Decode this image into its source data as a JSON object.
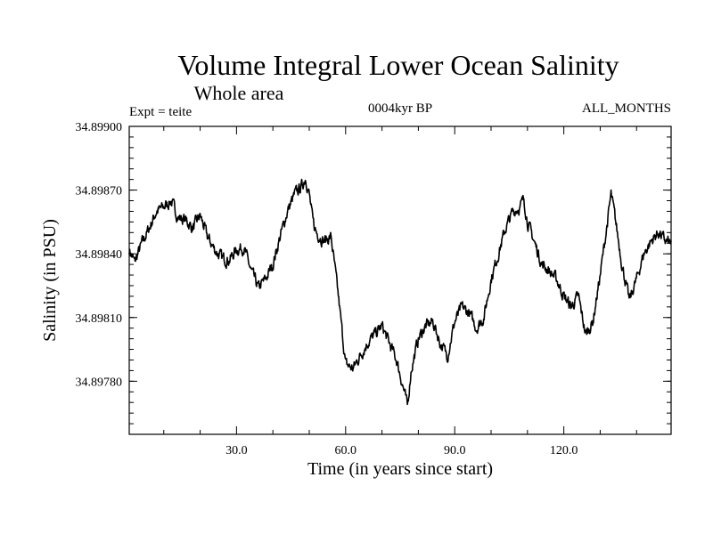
{
  "chart_data": {
    "type": "line",
    "title": "Volume Integral Lower Ocean Salinity",
    "subtitle": "Whole area",
    "left_note": "Expt = teite",
    "center_note": "0004kyr BP",
    "right_note": "ALL_MONTHS",
    "xlabel": "Time (in years since start)",
    "ylabel": "Salinity (in PSU)",
    "xlim": [
      0.5,
      149.5
    ],
    "ylim": [
      34.89755,
      34.899
    ],
    "x_ticks": [
      "30.0",
      "60.0",
      "90.0",
      "120.0"
    ],
    "x_tick_values": [
      30,
      60,
      90,
      120
    ],
    "y_ticks": [
      "34.89900",
      "34.89870",
      "34.89840",
      "34.89810",
      "34.89780"
    ],
    "y_tick_values": [
      34.899,
      34.8987,
      34.8984,
      34.8981,
      34.8978
    ],
    "grid": false,
    "line_color": "#000000",
    "series": [
      {
        "name": "salinity",
        "x": [
          0.5,
          2,
          4,
          6,
          8,
          10,
          12,
          14,
          16,
          18,
          20,
          22,
          24,
          26,
          28,
          30,
          32,
          34,
          36,
          38,
          40,
          42,
          44,
          46,
          48,
          49,
          50,
          51,
          52,
          54,
          56,
          58,
          60,
          62,
          64,
          66,
          68,
          70,
          72,
          74,
          76,
          77,
          78,
          80,
          82,
          84,
          86,
          88,
          90,
          92,
          94,
          96,
          98,
          100,
          102,
          104,
          106,
          108,
          109,
          110,
          112,
          114,
          116,
          118,
          120,
          122,
          124,
          126,
          128,
          130,
          132,
          133,
          134,
          136,
          138,
          140,
          142,
          144,
          146,
          148,
          149.5
        ],
        "values": [
          34.89842,
          34.89836,
          34.89845,
          34.89852,
          34.8986,
          34.89862,
          34.89865,
          34.89857,
          34.89856,
          34.89852,
          34.89858,
          34.89848,
          34.89842,
          34.89838,
          34.89837,
          34.89842,
          34.89843,
          34.89832,
          34.89824,
          34.89828,
          34.89835,
          34.89848,
          34.8986,
          34.89868,
          34.89872,
          34.89876,
          34.89868,
          34.89855,
          34.8985,
          34.89846,
          34.89848,
          34.8982,
          34.89788,
          34.89786,
          34.89792,
          34.89798,
          34.89802,
          34.89806,
          34.89798,
          34.8979,
          34.89776,
          34.89768,
          34.89785,
          34.898,
          34.89806,
          34.89808,
          34.89798,
          34.89792,
          34.89808,
          34.89815,
          34.89812,
          34.89805,
          34.8981,
          34.89828,
          34.8984,
          34.89852,
          34.8986,
          34.89862,
          34.89866,
          34.89855,
          34.89845,
          34.89835,
          34.89832,
          34.89828,
          34.8982,
          34.89815,
          34.8982,
          34.89802,
          34.89808,
          34.8983,
          34.89855,
          34.89868,
          34.89858,
          34.89835,
          34.89818,
          34.89828,
          34.8984,
          34.89846,
          34.8985,
          34.89846,
          34.89845
        ]
      }
    ]
  }
}
